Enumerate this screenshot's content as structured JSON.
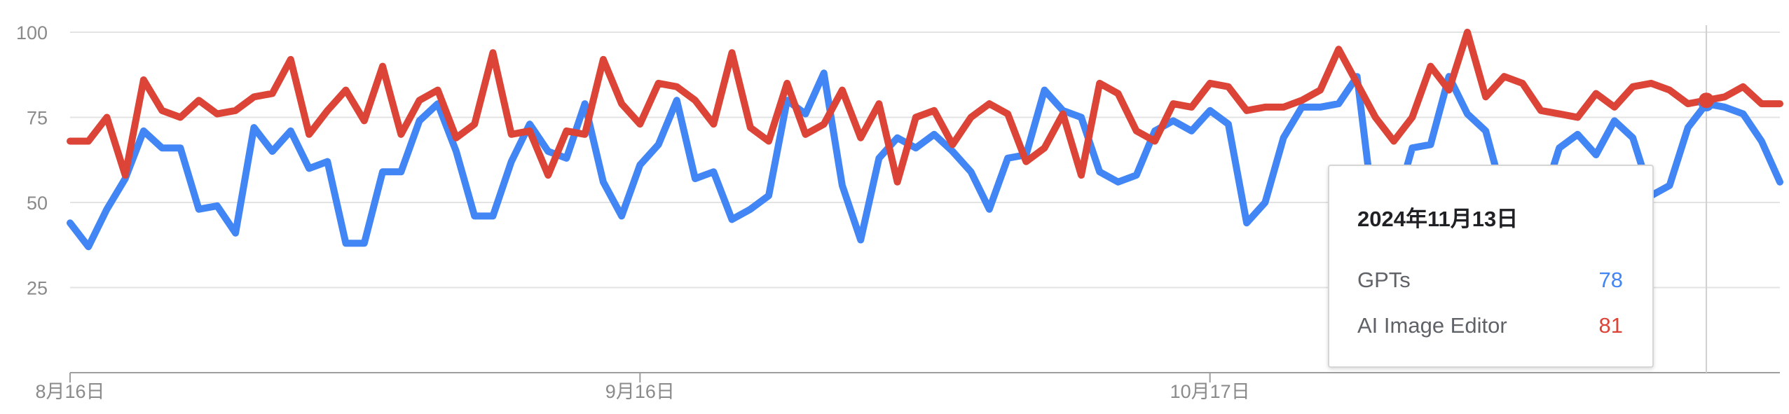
{
  "chart_data": {
    "type": "line",
    "ylim": [
      0,
      100
    ],
    "yticks": [
      100,
      75,
      50,
      25
    ],
    "x_tick_labels": [
      "8月16日",
      "9月16日",
      "10月17日"
    ],
    "grid": true,
    "series": [
      {
        "name": "GPTs",
        "color": "#4285f4",
        "values": [
          44,
          37,
          48,
          57,
          71,
          66,
          66,
          48,
          49,
          41,
          72,
          65,
          71,
          60,
          62,
          38,
          38,
          59,
          59,
          74,
          79,
          65,
          46,
          46,
          62,
          73,
          65,
          63,
          79,
          56,
          46,
          61,
          67,
          80,
          57,
          59,
          45,
          48,
          52,
          80,
          76,
          88,
          55,
          39,
          63,
          69,
          66,
          70,
          65,
          59,
          48,
          63,
          64,
          83,
          77,
          75,
          59,
          56,
          58,
          71,
          74,
          71,
          77,
          73,
          44,
          50,
          69,
          78,
          78,
          79,
          87,
          43,
          47,
          66,
          67,
          87,
          76,
          71,
          51,
          46,
          49,
          66,
          70,
          64,
          74,
          69,
          52,
          55,
          72,
          79,
          78,
          76,
          68,
          56
        ]
      },
      {
        "name": "AI Image Editor",
        "color": "#db4437",
        "values": [
          68,
          68,
          75,
          58,
          86,
          77,
          75,
          80,
          76,
          77,
          81,
          82,
          92,
          70,
          77,
          83,
          74,
          90,
          70,
          80,
          83,
          69,
          73,
          94,
          70,
          71,
          58,
          71,
          70,
          92,
          79,
          73,
          85,
          84,
          80,
          73,
          94,
          72,
          68,
          85,
          70,
          73,
          83,
          69,
          79,
          56,
          75,
          77,
          67,
          75,
          79,
          76,
          62,
          66,
          76,
          58,
          85,
          82,
          71,
          68,
          79,
          78,
          85,
          84,
          77,
          78,
          78,
          80,
          83,
          95,
          85,
          75,
          68,
          75,
          90,
          83,
          100,
          81,
          87,
          85,
          77,
          76,
          75,
          82,
          78,
          84,
          85,
          83,
          79,
          80,
          81,
          84,
          79,
          79
        ]
      }
    ]
  },
  "tooltip": {
    "date": "2024年11月13日",
    "rows": [
      {
        "name": "GPTs",
        "value": "78",
        "color": "#4285f4"
      },
      {
        "name": "AI Image Editor",
        "value": "81",
        "color": "#db4437"
      }
    ]
  }
}
